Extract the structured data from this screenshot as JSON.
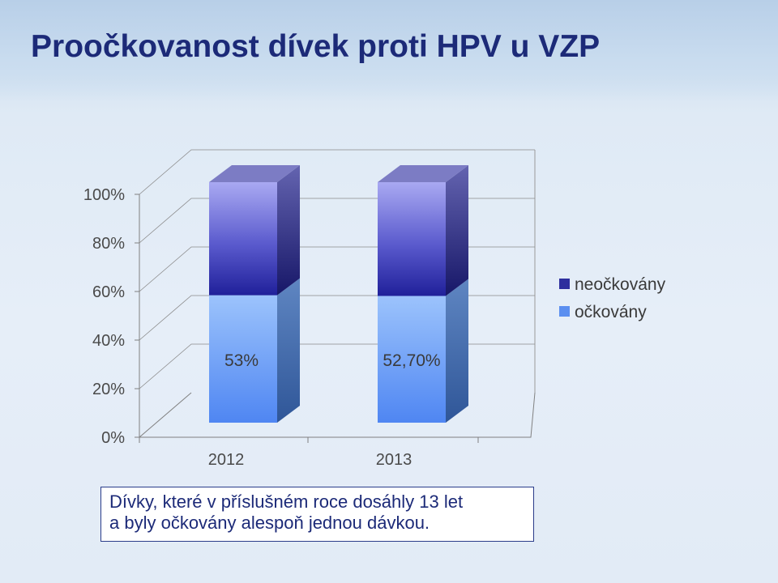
{
  "slide": {
    "title": "Proočkovanost dívek proti HPV u VZP",
    "caption_line1": "Dívky, které v příslušném roce dosáhly 13 let",
    "caption_line2": "a byly očkovány alespoň jednou dávkou."
  },
  "chart_data": {
    "type": "bar",
    "stacked": true,
    "three_d": true,
    "percent_stacked": true,
    "categories": [
      "2012",
      "2013"
    ],
    "series": [
      {
        "name": "očkovány",
        "values": [
          53,
          52.7
        ],
        "data_labels": [
          "53%",
          "52,70%"
        ],
        "color": "#5b8ff0"
      },
      {
        "name": "neočkovány",
        "values": [
          47,
          47.3
        ],
        "color": "#2e2f9e"
      }
    ],
    "y_ticks": [
      "0%",
      "20%",
      "40%",
      "60%",
      "80%",
      "100%"
    ],
    "ylim": [
      0,
      100
    ],
    "legend_position": "right",
    "title": "",
    "xlabel": "",
    "ylabel": ""
  }
}
